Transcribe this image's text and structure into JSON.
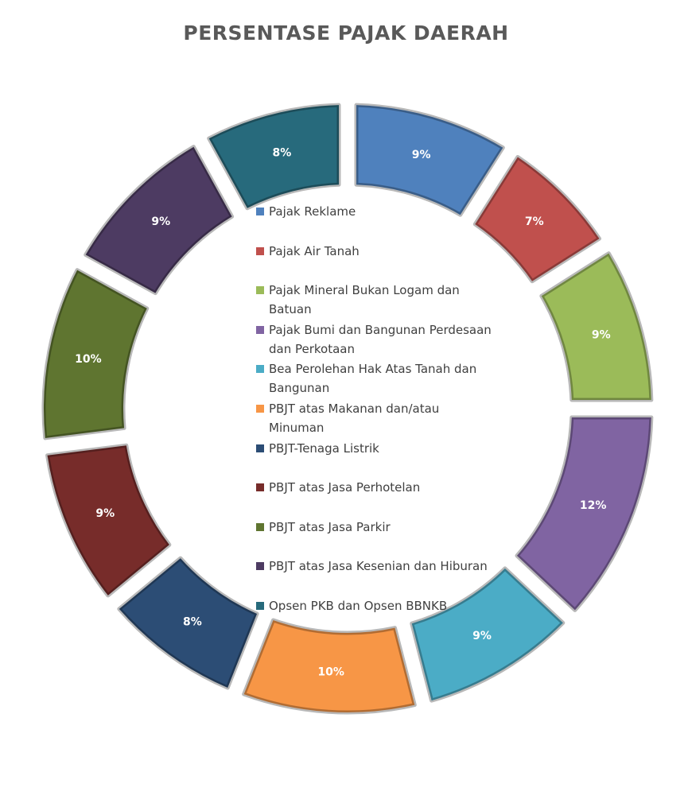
{
  "chart_data": {
    "type": "donut",
    "title": "PERSENTASE PAJAK DAERAH",
    "categories": [
      "Pajak Reklame",
      "Pajak Air Tanah",
      "Pajak Mineral Bukan Logam dan Batuan",
      "Pajak Bumi dan Bangunan Perdesaan dan Perkotaan",
      "Bea Perolehan Hak Atas Tanah dan Bangunan",
      "PBJT atas Makanan dan/atau Minuman",
      "PBJT-Tenaga Listrik",
      "PBJT atas Jasa Perhotelan",
      "PBJT atas Jasa Parkir",
      "PBJT atas Jasa Kesenian dan Hiburan",
      "Opsen PKB dan Opsen BBNKB"
    ],
    "values": [
      9,
      7,
      9,
      12,
      9,
      10,
      8,
      9,
      10,
      9,
      8
    ],
    "value_labels": [
      "9%",
      "7%",
      "9%",
      "12%",
      "9%",
      "10%",
      "8%",
      "9%",
      "10%",
      "9%",
      "8%"
    ],
    "colors": [
      "#4f81bd",
      "#c0504d",
      "#9bbb59",
      "#8064a2",
      "#4bacc6",
      "#f79646",
      "#2c4d75",
      "#772c2a",
      "#5f7530",
      "#4d3b62",
      "#276a7c"
    ]
  }
}
